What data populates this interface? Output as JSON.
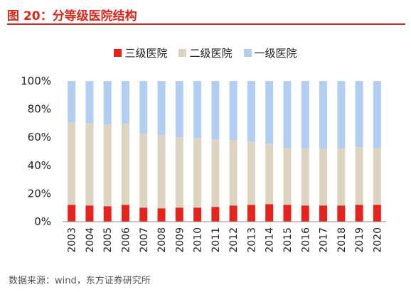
{
  "header": {
    "title": "图 20：分等级医院结构"
  },
  "footer": {
    "source": "数据来源：wind，东方证券研究所"
  },
  "chart_data": {
    "type": "bar",
    "stacked": true,
    "categories": [
      "2003",
      "2004",
      "2005",
      "2006",
      "2007",
      "2008",
      "2009",
      "2010",
      "2011",
      "2012",
      "2013",
      "2014",
      "2015",
      "2016",
      "2017",
      "2018",
      "2019",
      "2020"
    ],
    "series": [
      {
        "name": "三级医院",
        "color": "#e8231b",
        "values": [
          12,
          11.5,
          11,
          12,
          10,
          9.5,
          10,
          10,
          10.5,
          11.5,
          12,
          12.5,
          12,
          11.5,
          11.5,
          11.5,
          12,
          12
        ]
      },
      {
        "name": "二级医院",
        "color": "#ddd3c1",
        "values": [
          58.5,
          58.5,
          58,
          57.5,
          52.5,
          52,
          50,
          49.5,
          48,
          46.5,
          45,
          43,
          40.5,
          40.5,
          40.5,
          40.5,
          41,
          40.5
        ]
      },
      {
        "name": "一级医院",
        "color": "#b2cff3",
        "values": [
          29.5,
          30,
          31,
          30.5,
          37.5,
          38.5,
          40,
          40.5,
          41.5,
          42,
          43,
          44.5,
          47.5,
          48,
          48,
          48,
          47,
          47.5
        ]
      }
    ],
    "yticks": [
      "0%",
      "20%",
      "40%",
      "60%",
      "80%",
      "100%"
    ],
    "ylim": [
      0,
      100
    ],
    "legend_position": "top-center"
  }
}
